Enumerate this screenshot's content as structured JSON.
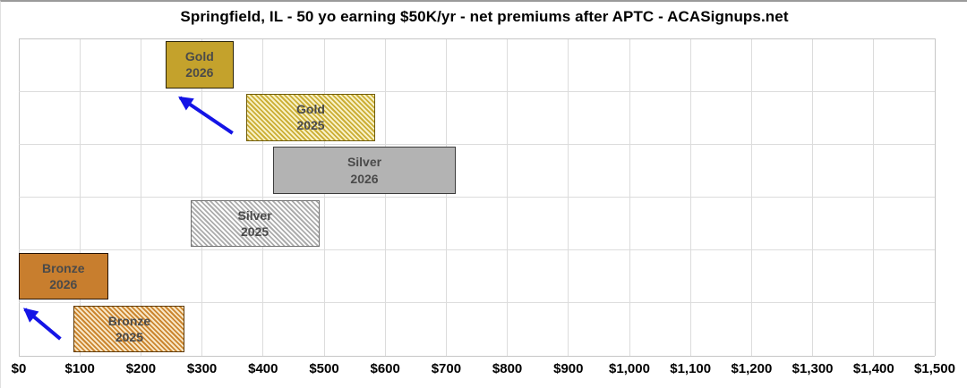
{
  "title": "Springfield, IL - 50 yo earning $50K/yr - net premiums after APTC - ACASignups.net",
  "chart_data": {
    "type": "bar",
    "subtype": "horizontal-range-bars",
    "title": "Springfield, IL - 50 yo earning $50K/yr - net premiums after APTC - ACASignups.net",
    "xlabel": "",
    "ylabel": "",
    "xlim": [
      0,
      1500
    ],
    "grid": true,
    "x_ticks": [
      0,
      100,
      200,
      300,
      400,
      500,
      600,
      700,
      800,
      900,
      1000,
      1100,
      1200,
      1300,
      1400,
      1500
    ],
    "x_tick_labels": [
      "$0",
      "$100",
      "$200",
      "$300",
      "$400",
      "$500",
      "$600",
      "$700",
      "$800",
      "$900",
      "$1,000",
      "$1,100",
      "$1,200",
      "$1,300",
      "$1,400",
      "$1,500"
    ],
    "bars": [
      {
        "tier": "Gold",
        "year": "2026",
        "label_line1": "Gold",
        "label_line2": "2026",
        "row": 0,
        "range_usd": [
          240,
          352
        ],
        "pattern": "solid",
        "fill": "#C4A22C",
        "hatch_bg": "",
        "border": "#2a2205"
      },
      {
        "tier": "Gold",
        "year": "2025",
        "label_line1": "Gold",
        "label_line2": "2025",
        "row": 1,
        "range_usd": [
          373,
          583
        ],
        "pattern": "hatch",
        "fill": "#CBAE35",
        "hatch_bg": "#F8F1C6",
        "border": "#6f5c0a"
      },
      {
        "tier": "Silver",
        "year": "2026",
        "label_line1": "Silver",
        "label_line2": "2026",
        "row": 2,
        "range_usd": [
          417,
          715
        ],
        "pattern": "solid",
        "fill": "#B3B3B3",
        "hatch_bg": "",
        "border": "#3c3c3c"
      },
      {
        "tier": "Silver",
        "year": "2025",
        "label_line1": "Silver",
        "label_line2": "2025",
        "row": 3,
        "range_usd": [
          281,
          492
        ],
        "pattern": "hatch",
        "fill": "#ACACAC",
        "hatch_bg": "#FFFFFF",
        "border": "#707070"
      },
      {
        "tier": "Bronze",
        "year": "2026",
        "label_line1": "Bronze",
        "label_line2": "2026",
        "row": 4,
        "range_usd": [
          0,
          146
        ],
        "pattern": "solid",
        "fill": "#C87E2E",
        "hatch_bg": "",
        "border": "#241203"
      },
      {
        "tier": "Bronze",
        "year": "2025",
        "label_line1": "Bronze",
        "label_line2": "2025",
        "row": 5,
        "range_usd": [
          90,
          272
        ],
        "pattern": "hatch",
        "fill": "#CB852F",
        "hatch_bg": "#F8E7C6",
        "border": "#5f3a08"
      }
    ],
    "arrows": [
      {
        "name": "gold-2025-to-2026-arrow",
        "from": {
          "usd": 350,
          "row": 1.79
        },
        "to": {
          "usd": 264,
          "row": 1.12
        }
      },
      {
        "name": "bronze-2025-to-2026-arrow",
        "from": {
          "usd": 68,
          "row": 5.68
        },
        "to": {
          "usd": 10,
          "row": 5.12
        }
      }
    ],
    "colors": {
      "arrow": "#1414E6",
      "gridline": "#DCDCDC",
      "plot_border": "#C6C6C6",
      "bar_label_text": "#4A4A4A",
      "axis_label_text": "#000000",
      "background": "#FFFFFF"
    }
  }
}
